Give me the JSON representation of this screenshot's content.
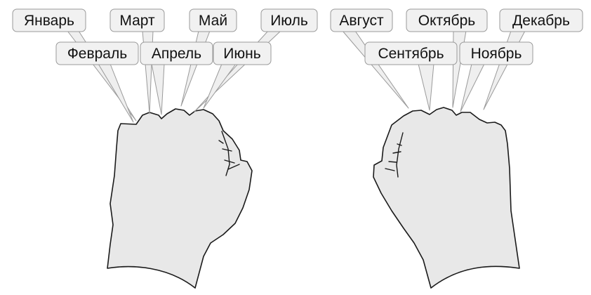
{
  "left_hand": {
    "months": [
      {
        "id": "jan",
        "label": "Январь"
      },
      {
        "id": "feb",
        "label": "Февраль"
      },
      {
        "id": "mar",
        "label": "Март"
      },
      {
        "id": "apr",
        "label": "Апрель"
      },
      {
        "id": "may",
        "label": "Май"
      },
      {
        "id": "jun",
        "label": "Июнь"
      },
      {
        "id": "jul",
        "label": "Июль"
      }
    ]
  },
  "right_hand": {
    "months": [
      {
        "id": "aug",
        "label": "Август"
      },
      {
        "id": "sep",
        "label": "Сентябрь"
      },
      {
        "id": "oct",
        "label": "Октябрь"
      },
      {
        "id": "nov",
        "label": "Ноябрь"
      },
      {
        "id": "dec",
        "label": "Декабрь"
      }
    ]
  }
}
